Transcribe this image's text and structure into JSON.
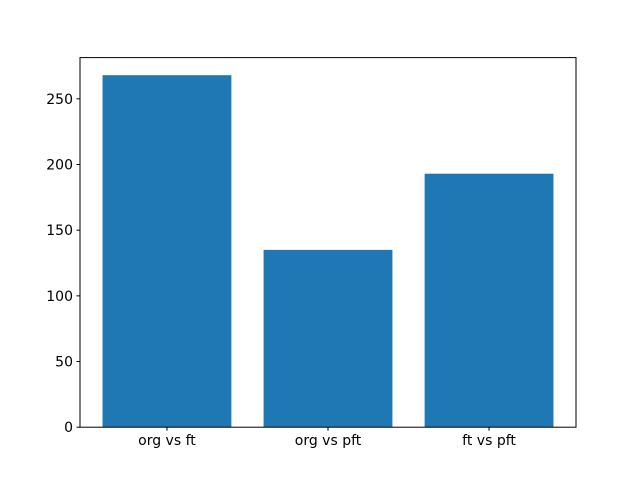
{
  "chart_data": {
    "type": "bar",
    "title": "",
    "xlabel": "",
    "ylabel": "",
    "categories": [
      "org vs ft",
      "org vs pft",
      "ft vs pft"
    ],
    "values": [
      268,
      135,
      193
    ],
    "yticks": [
      0,
      50,
      100,
      150,
      200,
      250
    ],
    "ylim": [
      0,
      281.4
    ],
    "bar_color": "#1f77b4",
    "axis_color": "#000000",
    "background_color": "#ffffff",
    "grid": false,
    "legend": null
  }
}
